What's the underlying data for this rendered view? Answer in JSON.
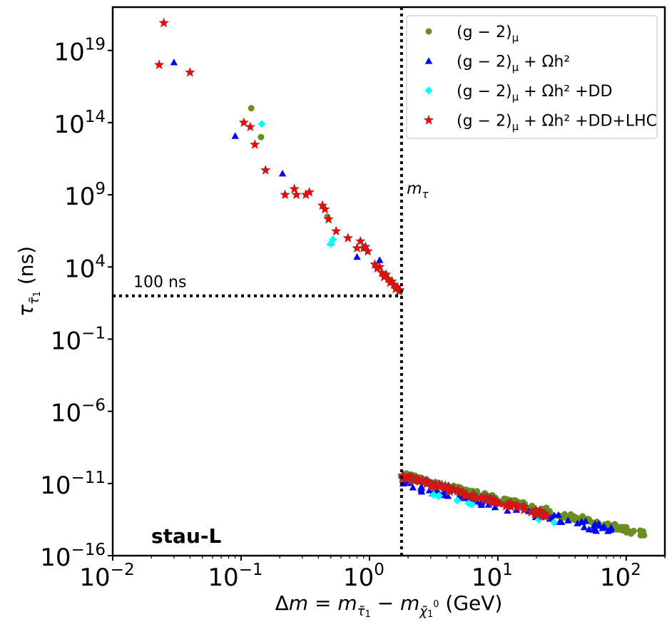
{
  "chart_data": {
    "type": "scatter",
    "title": "",
    "panel_label": "stau-L",
    "xlabel": "Δm = m_τ̃1 − m_χ̃01 (GeV)",
    "xlabel_parts": {
      "delta": "Δ",
      "m": "m",
      "eq": " = ",
      "m1": "m",
      "sub1": "τ̃",
      "sub1b": "1",
      "minus": " − ",
      "m2": "m",
      "sub2": "χ̃",
      "sub2b": "1",
      "sup2": "0",
      "unit": " (GeV)"
    },
    "ylabel": "τ_τ̃1 (ns)",
    "ylabel_parts": {
      "tau": "τ",
      "sub": "τ̃",
      "subb": "1",
      "unit": " (ns)"
    },
    "xscale": "log",
    "yscale": "log",
    "xlim": [
      0.01,
      200
    ],
    "ylim": [
      1e-16,
      1e+22
    ],
    "xticks": [
      {
        "value": 0.01,
        "base": "10",
        "exp": "−2"
      },
      {
        "value": 0.1,
        "base": "10",
        "exp": "−1"
      },
      {
        "value": 1,
        "base": "10",
        "exp": "0"
      },
      {
        "value": 10,
        "base": "10",
        "exp": "1"
      },
      {
        "value": 100,
        "base": "10",
        "exp": "2"
      }
    ],
    "yticks": [
      {
        "value": 1e-16,
        "base": "10",
        "exp": "−16"
      },
      {
        "value": 1e-11,
        "base": "10",
        "exp": "−11"
      },
      {
        "value": 1e-06,
        "base": "10",
        "exp": "−6"
      },
      {
        "value": 0.1,
        "base": "10",
        "exp": "−1"
      },
      {
        "value": 10000.0,
        "base": "10",
        "exp": "4"
      },
      {
        "value": 1000000000.0,
        "base": "10",
        "exp": "9"
      },
      {
        "value": 100000000000000.0,
        "base": "10",
        "exp": "14"
      },
      {
        "value": 1e+19,
        "base": "10",
        "exp": "19"
      }
    ],
    "legend_position": "top-right",
    "series": [
      {
        "name": "(g − 2)_μ",
        "label_parts": {
          "main": "(g − 2)",
          "sub": "μ",
          "rest": ""
        },
        "color": "#6b8e23",
        "marker": "circle",
        "x": [
          0.12,
          0.143,
          0.47
        ],
        "y": [
          1000000000000000.0,
          10000000000000.0,
          30000000.0
        ],
        "band": {
          "x_start": 1.77,
          "x_end": 140,
          "y_start": 4e-11,
          "y_end": 3e-15,
          "n": 150,
          "scatter_decades": 0.4
        }
      },
      {
        "name": "(g − 2)_μ + Ωh²",
        "label_parts": {
          "main": "(g − 2)",
          "sub": "μ",
          "rest": " + Ωh²"
        },
        "color": "#0000ff",
        "marker": "triangle",
        "x": [
          0.03,
          0.09,
          0.21,
          0.5,
          0.8,
          0.95,
          1.2
        ],
        "y": [
          1.5e+18,
          12000000000000.0,
          30000000000.0,
          500000.0,
          50000.0,
          200000.0,
          30000.0
        ],
        "band": {
          "x_start": 1.77,
          "x_end": 80,
          "y_start": 1e-11,
          "y_end": 5e-15,
          "n": 70,
          "scatter_decades": 0.55
        }
      },
      {
        "name": "(g − 2)_μ + Ωh² +DD",
        "label_parts": {
          "main": "(g − 2)",
          "sub": "μ",
          "rest": " + Ωh² +DD"
        },
        "color": "#00ffff",
        "marker": "diamond",
        "x": [
          0.145,
          0.5,
          0.52
        ],
        "y": [
          80000000000000.0,
          400000.0,
          800000.0
        ],
        "band": {
          "x_start": 3,
          "x_end": 30,
          "y_start": 2e-12,
          "y_end": 1.5e-14,
          "n": 8,
          "scatter_decades": 0.3
        }
      },
      {
        "name": "(g − 2)_μ + Ωh² +DD+LHC",
        "label_parts": {
          "main": "(g − 2)",
          "sub": "μ",
          "rest": " + Ωh² +DD+LHC"
        },
        "color": "#ff0000",
        "marker": "star",
        "x": [
          0.023,
          0.025,
          0.04,
          0.105,
          0.118,
          0.128,
          0.155,
          0.22,
          0.26,
          0.27,
          0.32,
          0.34,
          0.43,
          0.45,
          0.48,
          0.55,
          0.68,
          0.8,
          0.85,
          0.9,
          0.93,
          0.97,
          1.1,
          1.15,
          1.2,
          1.25,
          1.3,
          1.35,
          1.4,
          1.45,
          1.5,
          1.55,
          1.6,
          1.65,
          1.7,
          1.72
        ],
        "y": [
          1e+18,
          8e+20,
          3e+17,
          100000000000000.0,
          50000000000000.0,
          3000000000000.0,
          50000000000.0,
          1000000000.0,
          2500000000.0,
          1000000000.0,
          1000000000.0,
          1500000000.0,
          180000000.0,
          100000000.0,
          20000000.0,
          3000000.0,
          1000000.0,
          200000.0,
          600000.0,
          200000.0,
          250000.0,
          120000.0,
          15000.0,
          8000.0,
          10000.0,
          4000.0,
          2000.0,
          3000.0,
          1500.0,
          800,
          1000.0,
          600,
          300,
          400,
          200,
          250
        ],
        "band": {
          "x_start": 1.8,
          "x_end": 25,
          "y_start": 3e-11,
          "y_end": 6e-14,
          "n": 120,
          "scatter_decades": 0.35
        }
      }
    ],
    "annotations": [
      {
        "kind": "hline",
        "y": 100,
        "x_from": 0.01,
        "x_to": 1.777,
        "label": "100 ns",
        "label_x": 0.0145,
        "label_y": 400
      },
      {
        "kind": "vline",
        "x": 1.777,
        "label": "m_τ",
        "label_parts": {
          "m": "m",
          "sub": "τ"
        },
        "label_x": 1.95,
        "label_y": 1200000000.0
      }
    ]
  }
}
